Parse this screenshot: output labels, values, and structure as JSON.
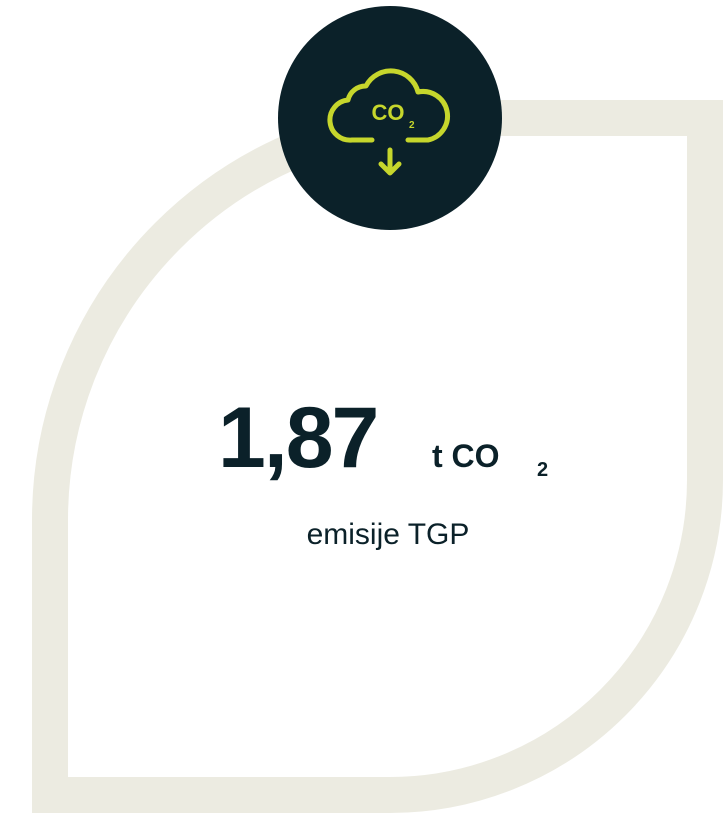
{
  "icon": {
    "label": "CO",
    "subscript": "2"
  },
  "stat": {
    "value": "1,87",
    "unit": "t CO",
    "unit_subscript": "2",
    "caption": "emisije TGP"
  }
}
